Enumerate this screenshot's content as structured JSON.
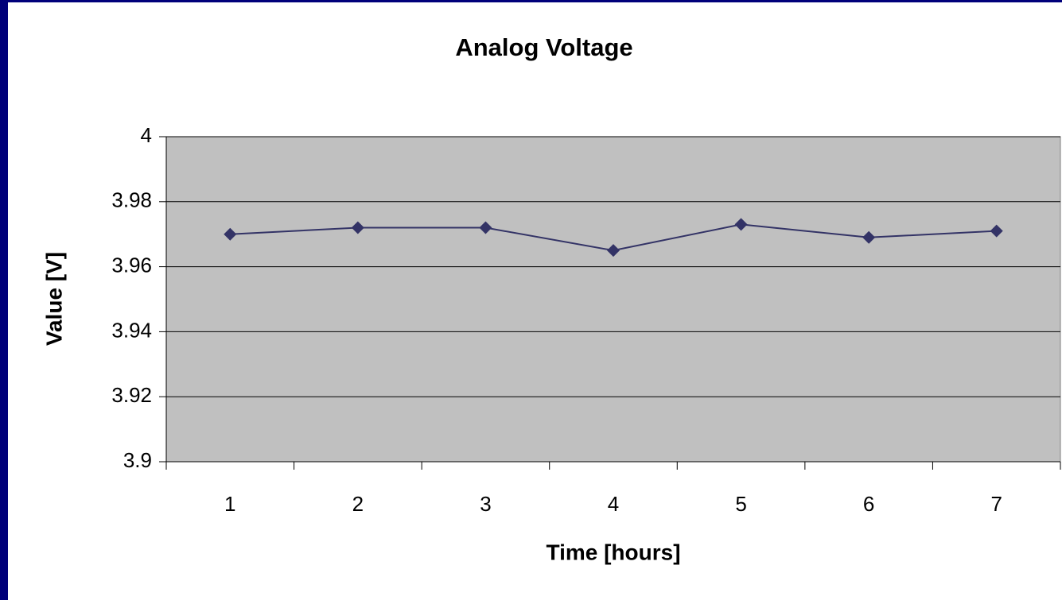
{
  "chart_data": {
    "type": "line",
    "title": "Analog Voltage",
    "x_label": "Time [hours]",
    "y_label": "Value [V]",
    "categories": [
      "1",
      "2",
      "3",
      "4",
      "5",
      "6",
      "7"
    ],
    "values": [
      3.97,
      3.972,
      3.972,
      3.965,
      3.973,
      3.969,
      3.971
    ],
    "color": "#333366",
    "ylim": [
      3.9,
      4
    ],
    "yticks": [
      3.9,
      3.92,
      3.94,
      3.96,
      3.98,
      4
    ],
    "grid": true
  }
}
